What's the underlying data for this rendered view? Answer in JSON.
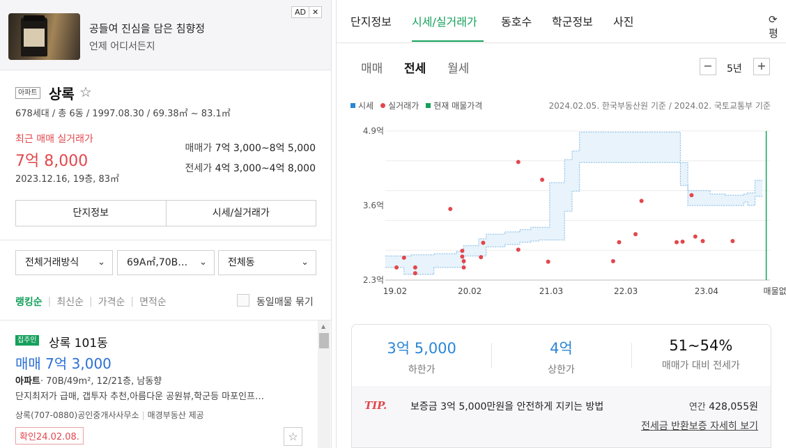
{
  "ad": {
    "badge": "AD",
    "close": "✕",
    "title": "공들여 진심을 담은 침향정",
    "subtitle": "언제 어디서든지"
  },
  "property": {
    "type_tag": "아파트",
    "name": "상록",
    "star": "☆",
    "meta": "678세대 / 총 6동 / 1997.08.30 / 69.38㎡ ~ 83.1㎡",
    "recent_label": "최근 매매 실거래가",
    "recent_price": "7억 8,000",
    "recent_detail": "2023.12.16, 19층, 83㎡",
    "sale_label": "매매가",
    "sale_range": "7억 3,000~8억 5,000",
    "jeonse_label": "전세가",
    "jeonse_range": "4억 3,000~4억 8,000"
  },
  "buttons": {
    "complex_info": "단지정보",
    "price_info": "시세/실거래가"
  },
  "filters": {
    "trade_type": "전체거래방식",
    "area": "69A㎡,70B…",
    "dong": "전체동",
    "chevron": "⌄"
  },
  "sort": {
    "items": [
      "랭킹순",
      "최신순",
      "가격순",
      "면적순"
    ],
    "same_listing": "동일매물 묶기"
  },
  "listing": {
    "badge": "집주인",
    "title": "상록 101동",
    "price": "매매 7억 3,000",
    "spec_type": "아파트",
    "spec_rest": "· 70B/49m², 12/21층, 남동향",
    "desc": "단지최저가 급매, 갭투자 추천,아름다운 공원뷰,학군등 마포인프…",
    "agent": "상록(707-0880)공인중개사사무소",
    "provider": "매경부동산 제공",
    "confirm": "확인24.02.08.",
    "fav": "☆"
  },
  "tabs": [
    "단지정보",
    "시세/실거래가",
    "동호수",
    "학군정보",
    "사진"
  ],
  "tab_reload": "⟳ 평",
  "subtabs": [
    "매매",
    "전세",
    "월세"
  ],
  "period": {
    "minus": "−",
    "value": "5년",
    "plus": "+"
  },
  "legend": {
    "market": "시세",
    "actual": "실거래가",
    "current": "현재 매물가격",
    "basis": "2024.02.05. 한국부동산원 기준 / 2024.02. 국토교통부 기준"
  },
  "colors": {
    "accent": "#15a05b",
    "band_fill": "#e8f3fb",
    "band_line": "#7fb8e6",
    "dot": "#e2474c",
    "current": "#15a05b"
  },
  "chart_data": {
    "type": "area",
    "y_ticks": [
      "4.9억",
      "3.6억",
      "2.3억"
    ],
    "y_tick_values": [
      4.9,
      3.6,
      2.3
    ],
    "ylim": [
      2.3,
      4.9
    ],
    "x_ticks": [
      "19.02",
      "20.02",
      "21.03",
      "22.03",
      "23.04"
    ],
    "x_tick_values": [
      2019.08,
      2020.08,
      2021.17,
      2022.17,
      2023.25
    ],
    "x_end_label": "매물없음",
    "xlim": [
      2018.95,
      2024.1
    ],
    "current_line_x": 2024.05,
    "market_band": {
      "x": [
        2018.95,
        2019.2,
        2019.3,
        2019.55,
        2019.6,
        2019.9,
        2020.0,
        2020.2,
        2020.3,
        2020.55,
        2020.75,
        2020.9,
        2021.0,
        2021.15,
        2021.35,
        2021.45,
        2021.55,
        2022.2,
        2022.5,
        2022.9,
        2023.0,
        2023.3,
        2023.5,
        2023.6,
        2023.75,
        2023.8,
        2023.9,
        2024.0
      ],
      "lower": [
        2.52,
        2.4,
        2.4,
        2.4,
        2.52,
        2.52,
        2.72,
        2.72,
        2.88,
        2.92,
        2.96,
        2.98,
        3.0,
        3.0,
        3.5,
        3.85,
        4.35,
        4.35,
        4.35,
        3.95,
        3.6,
        3.6,
        3.6,
        3.6,
        3.66,
        3.6,
        3.76,
        3.76
      ],
      "upper": [
        2.72,
        2.72,
        2.74,
        2.74,
        2.76,
        2.8,
        2.9,
        3.02,
        3.1,
        3.14,
        3.18,
        3.22,
        3.22,
        4.0,
        4.4,
        4.55,
        4.88,
        4.88,
        4.88,
        4.35,
        3.86,
        3.8,
        3.78,
        3.78,
        3.8,
        3.82,
        4.04,
        4.04
      ]
    },
    "actual_points": [
      {
        "x": 2019.1,
        "y": 2.52
      },
      {
        "x": 2019.2,
        "y": 2.69
      },
      {
        "x": 2019.35,
        "y": 2.42
      },
      {
        "x": 2019.35,
        "y": 2.52
      },
      {
        "x": 2019.82,
        "y": 3.54
      },
      {
        "x": 2019.98,
        "y": 2.81
      },
      {
        "x": 2019.98,
        "y": 2.71
      },
      {
        "x": 2020.0,
        "y": 2.52
      },
      {
        "x": 2020.0,
        "y": 2.63
      },
      {
        "x": 2020.23,
        "y": 2.7
      },
      {
        "x": 2020.26,
        "y": 2.95
      },
      {
        "x": 2020.73,
        "y": 4.36
      },
      {
        "x": 2020.73,
        "y": 2.83
      },
      {
        "x": 2021.05,
        "y": 4.05
      },
      {
        "x": 2021.13,
        "y": 2.62
      },
      {
        "x": 2022.0,
        "y": 2.63
      },
      {
        "x": 2022.08,
        "y": 2.96
      },
      {
        "x": 2022.3,
        "y": 3.1
      },
      {
        "x": 2022.38,
        "y": 3.68
      },
      {
        "x": 2022.85,
        "y": 2.96
      },
      {
        "x": 2022.93,
        "y": 2.97
      },
      {
        "x": 2023.05,
        "y": 3.78
      },
      {
        "x": 2023.1,
        "y": 3.06
      },
      {
        "x": 2023.2,
        "y": 2.98
      },
      {
        "x": 2023.6,
        "y": 2.98
      }
    ]
  },
  "summary": {
    "low_value": "3억 5,000",
    "low_label": "하한가",
    "high_value": "4억",
    "high_label": "상한가",
    "ratio_value": "51~54%",
    "ratio_label": "매매가 대비 전세가",
    "tip": "TIP.",
    "tip_text": "보증금 3억 5,000만원을 안전하게 지키는 방법",
    "annual_label": "연간",
    "annual_value": "428,055원",
    "guarantee_link": "전세금 반환보증 자세히 보기"
  }
}
